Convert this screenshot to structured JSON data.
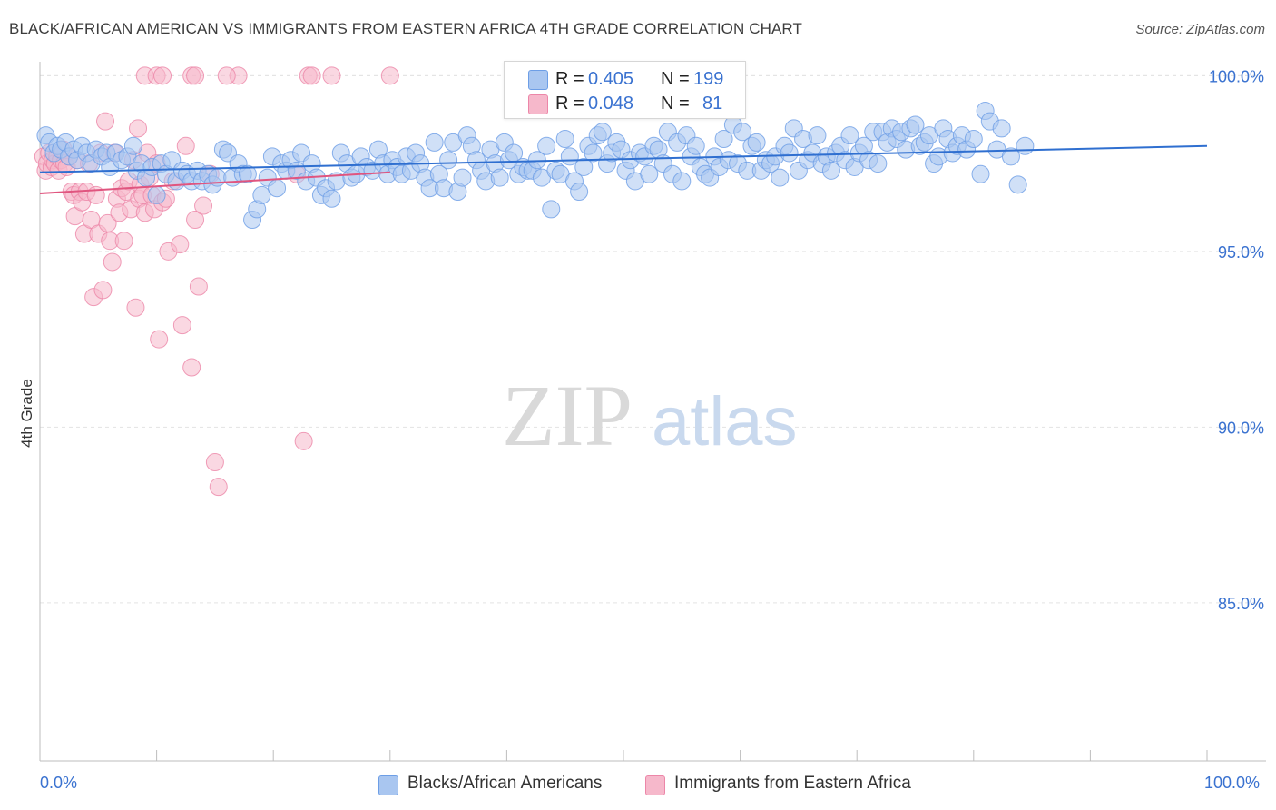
{
  "title": "BLACK/AFRICAN AMERICAN VS IMMIGRANTS FROM EASTERN AFRICA 4TH GRADE CORRELATION CHART",
  "source": "Source: ZipAtlas.com",
  "watermark": {
    "zip": "ZIP",
    "atlas": "atlas"
  },
  "legend_top": {
    "rows": [
      {
        "r_label": "R =",
        "r_value": "0.405",
        "n_label": "N =",
        "n_value": "199"
      },
      {
        "r_label": "R =",
        "r_value": "0.048",
        "n_label": "N =",
        "n_value": "81"
      }
    ]
  },
  "colors": {
    "blue_fill": "#a9c6f0",
    "blue_stroke": "#6d9ee6",
    "blue_line": "#2f6fd0",
    "pink_fill": "#f6b8cb",
    "pink_stroke": "#ec86a8",
    "pink_line": "#e0557f",
    "tick_label": "#3a72d0",
    "grid": "#e3e3e3"
  },
  "chart_data": {
    "type": "scatter",
    "title": "BLACK/AFRICAN AMERICAN VS IMMIGRANTS FROM EASTERN AFRICA 4TH GRADE CORRELATION CHART",
    "xlabel": "",
    "ylabel": "4th Grade",
    "xlim": [
      0,
      100
    ],
    "ylim": [
      80.5,
      100.5
    ],
    "x_tick_labels": [
      "0.0%",
      "100.0%"
    ],
    "y_ticks": [
      85,
      90,
      95,
      100
    ],
    "y_tick_labels": [
      "85.0%",
      "90.0%",
      "95.0%",
      "100.0%"
    ],
    "series": [
      {
        "name": "Blacks/African Americans",
        "color": "blue",
        "r": 0.405,
        "n": 199,
        "trend": {
          "x": [
            0,
            100
          ],
          "y": [
            97.25,
            98.0
          ]
        },
        "points": [
          [
            0.5,
            98.3
          ],
          [
            0.8,
            98.1
          ],
          [
            1.2,
            97.8
          ],
          [
            1.5,
            98.0
          ],
          [
            1.8,
            97.9
          ],
          [
            2.2,
            98.1
          ],
          [
            2.5,
            97.7
          ],
          [
            2.9,
            97.9
          ],
          [
            3.2,
            97.6
          ],
          [
            3.6,
            98.0
          ],
          [
            4.0,
            97.8
          ],
          [
            4.4,
            97.5
          ],
          [
            4.8,
            97.9
          ],
          [
            5.3,
            97.7
          ],
          [
            5.7,
            97.8
          ],
          [
            6.0,
            97.4
          ],
          [
            6.5,
            97.8
          ],
          [
            7.0,
            97.6
          ],
          [
            7.5,
            97.7
          ],
          [
            8.0,
            98.0
          ],
          [
            8.3,
            97.3
          ],
          [
            8.7,
            97.5
          ],
          [
            9.1,
            97.1
          ],
          [
            9.6,
            97.4
          ],
          [
            10.0,
            96.6
          ],
          [
            10.4,
            97.5
          ],
          [
            10.8,
            97.2
          ],
          [
            11.3,
            97.6
          ],
          [
            11.7,
            97.0
          ],
          [
            12.2,
            97.3
          ],
          [
            12.6,
            97.2
          ],
          [
            13.0,
            97.0
          ],
          [
            13.5,
            97.3
          ],
          [
            13.9,
            97.0
          ],
          [
            14.4,
            97.2
          ],
          [
            14.8,
            96.9
          ],
          [
            15.2,
            97.1
          ],
          [
            15.7,
            97.9
          ],
          [
            16.1,
            97.8
          ],
          [
            16.5,
            97.1
          ],
          [
            17.0,
            97.5
          ],
          [
            17.4,
            97.2
          ],
          [
            17.8,
            97.2
          ],
          [
            18.2,
            95.9
          ],
          [
            18.6,
            96.2
          ],
          [
            19.0,
            96.6
          ],
          [
            19.5,
            97.1
          ],
          [
            19.9,
            97.7
          ],
          [
            20.3,
            96.8
          ],
          [
            20.7,
            97.5
          ],
          [
            21.1,
            97.3
          ],
          [
            21.5,
            97.6
          ],
          [
            22.0,
            97.3
          ],
          [
            22.4,
            97.8
          ],
          [
            22.8,
            97.0
          ],
          [
            23.3,
            97.5
          ],
          [
            23.7,
            97.1
          ],
          [
            24.1,
            96.6
          ],
          [
            24.5,
            96.8
          ],
          [
            25.0,
            96.5
          ],
          [
            25.4,
            97.0
          ],
          [
            25.8,
            97.8
          ],
          [
            26.3,
            97.5
          ],
          [
            26.7,
            97.1
          ],
          [
            27.1,
            97.2
          ],
          [
            27.5,
            97.7
          ],
          [
            28.0,
            97.4
          ],
          [
            28.5,
            97.3
          ],
          [
            29.0,
            97.9
          ],
          [
            29.4,
            97.5
          ],
          [
            29.8,
            97.2
          ],
          [
            30.2,
            97.6
          ],
          [
            30.6,
            97.4
          ],
          [
            31.0,
            97.2
          ],
          [
            31.4,
            97.7
          ],
          [
            31.8,
            97.3
          ],
          [
            32.2,
            97.8
          ],
          [
            32.6,
            97.5
          ],
          [
            33.0,
            97.1
          ],
          [
            33.4,
            96.8
          ],
          [
            33.8,
            98.1
          ],
          [
            34.2,
            97.2
          ],
          [
            34.6,
            96.8
          ],
          [
            35.0,
            97.6
          ],
          [
            35.4,
            98.1
          ],
          [
            35.8,
            96.7
          ],
          [
            36.2,
            97.1
          ],
          [
            36.6,
            98.3
          ],
          [
            37.0,
            98.0
          ],
          [
            37.4,
            97.6
          ],
          [
            37.8,
            97.3
          ],
          [
            38.2,
            97.0
          ],
          [
            38.6,
            97.9
          ],
          [
            39.0,
            97.5
          ],
          [
            39.4,
            97.1
          ],
          [
            39.8,
            98.1
          ],
          [
            40.2,
            97.6
          ],
          [
            40.6,
            97.8
          ],
          [
            41.0,
            97.2
          ],
          [
            41.4,
            97.4
          ],
          [
            41.8,
            97.3
          ],
          [
            42.2,
            97.3
          ],
          [
            42.6,
            97.6
          ],
          [
            43.0,
            97.1
          ],
          [
            43.4,
            98.0
          ],
          [
            43.8,
            96.2
          ],
          [
            44.2,
            97.3
          ],
          [
            44.6,
            97.2
          ],
          [
            45.0,
            98.2
          ],
          [
            45.4,
            97.7
          ],
          [
            45.8,
            97.0
          ],
          [
            46.2,
            96.7
          ],
          [
            46.6,
            97.4
          ],
          [
            47.0,
            98.0
          ],
          [
            47.4,
            97.8
          ],
          [
            47.8,
            98.3
          ],
          [
            48.2,
            98.4
          ],
          [
            48.6,
            97.5
          ],
          [
            49.0,
            97.8
          ],
          [
            49.4,
            98.1
          ],
          [
            49.8,
            97.9
          ],
          [
            50.2,
            97.3
          ],
          [
            50.6,
            97.6
          ],
          [
            51.0,
            97.0
          ],
          [
            51.4,
            97.8
          ],
          [
            51.8,
            97.7
          ],
          [
            52.2,
            97.2
          ],
          [
            52.6,
            98.0
          ],
          [
            53.0,
            97.9
          ],
          [
            53.4,
            97.5
          ],
          [
            53.8,
            98.4
          ],
          [
            54.2,
            97.2
          ],
          [
            54.6,
            98.1
          ],
          [
            55.0,
            97.0
          ],
          [
            55.4,
            98.3
          ],
          [
            55.8,
            97.7
          ],
          [
            56.2,
            98.0
          ],
          [
            56.6,
            97.4
          ],
          [
            57.0,
            97.2
          ],
          [
            57.4,
            97.1
          ],
          [
            57.8,
            97.7
          ],
          [
            58.2,
            97.4
          ],
          [
            58.6,
            98.2
          ],
          [
            59.0,
            97.6
          ],
          [
            59.4,
            98.6
          ],
          [
            59.8,
            97.5
          ],
          [
            60.2,
            98.4
          ],
          [
            60.6,
            97.3
          ],
          [
            61.0,
            98.0
          ],
          [
            61.4,
            98.1
          ],
          [
            61.8,
            97.3
          ],
          [
            62.2,
            97.6
          ],
          [
            62.6,
            97.5
          ],
          [
            63.0,
            97.7
          ],
          [
            63.4,
            97.1
          ],
          [
            63.8,
            98.0
          ],
          [
            64.2,
            97.8
          ],
          [
            64.6,
            98.5
          ],
          [
            65.0,
            97.3
          ],
          [
            65.4,
            98.2
          ],
          [
            65.8,
            97.6
          ],
          [
            66.2,
            97.8
          ],
          [
            66.6,
            98.3
          ],
          [
            67.0,
            97.5
          ],
          [
            67.4,
            97.7
          ],
          [
            67.8,
            97.3
          ],
          [
            68.2,
            97.8
          ],
          [
            68.6,
            98.0
          ],
          [
            69.0,
            97.6
          ],
          [
            69.4,
            98.3
          ],
          [
            69.8,
            97.4
          ],
          [
            70.2,
            97.8
          ],
          [
            70.6,
            98.0
          ],
          [
            71.0,
            97.6
          ],
          [
            71.4,
            98.4
          ],
          [
            71.8,
            97.5
          ],
          [
            72.2,
            98.4
          ],
          [
            72.6,
            98.1
          ],
          [
            73.0,
            98.5
          ],
          [
            73.4,
            98.2
          ],
          [
            73.8,
            98.4
          ],
          [
            74.2,
            97.9
          ],
          [
            74.6,
            98.5
          ],
          [
            75.0,
            98.6
          ],
          [
            75.4,
            98.0
          ],
          [
            75.8,
            98.1
          ],
          [
            76.2,
            98.3
          ],
          [
            76.6,
            97.5
          ],
          [
            77.0,
            97.7
          ],
          [
            77.4,
            98.5
          ],
          [
            77.8,
            98.2
          ],
          [
            78.2,
            97.8
          ],
          [
            78.6,
            98.0
          ],
          [
            79.0,
            98.3
          ],
          [
            79.4,
            97.9
          ],
          [
            80.0,
            98.2
          ],
          [
            80.6,
            97.2
          ],
          [
            81.0,
            99.0
          ],
          [
            81.4,
            98.7
          ],
          [
            82.0,
            97.9
          ],
          [
            82.4,
            98.5
          ],
          [
            83.2,
            97.7
          ],
          [
            83.8,
            96.9
          ],
          [
            84.4,
            98.0
          ]
        ]
      },
      {
        "name": "Immigrants from Eastern Africa",
        "color": "pink",
        "r": 0.048,
        "n": 81,
        "trend": {
          "x": [
            0,
            30
          ],
          "y": [
            96.65,
            97.25
          ]
        },
        "points": [
          [
            0.3,
            97.7
          ],
          [
            0.5,
            97.3
          ],
          [
            0.6,
            97.5
          ],
          [
            0.8,
            97.8
          ],
          [
            1.0,
            97.4
          ],
          [
            1.1,
            97.6
          ],
          [
            1.3,
            97.5
          ],
          [
            1.5,
            97.7
          ],
          [
            1.6,
            97.3
          ],
          [
            1.8,
            97.6
          ],
          [
            2.0,
            97.9
          ],
          [
            2.1,
            97.5
          ],
          [
            2.3,
            97.4
          ],
          [
            2.5,
            97.7
          ],
          [
            2.7,
            96.7
          ],
          [
            2.9,
            96.6
          ],
          [
            3.0,
            96.0
          ],
          [
            3.2,
            97.6
          ],
          [
            3.4,
            96.7
          ],
          [
            3.6,
            96.4
          ],
          [
            3.8,
            95.5
          ],
          [
            4.0,
            96.7
          ],
          [
            4.2,
            97.5
          ],
          [
            4.4,
            95.9
          ],
          [
            4.6,
            93.7
          ],
          [
            4.8,
            96.6
          ],
          [
            5.0,
            95.5
          ],
          [
            5.2,
            97.8
          ],
          [
            5.4,
            93.9
          ],
          [
            5.6,
            98.7
          ],
          [
            5.8,
            95.8
          ],
          [
            6.0,
            95.3
          ],
          [
            6.2,
            94.7
          ],
          [
            6.4,
            97.8
          ],
          [
            6.6,
            96.5
          ],
          [
            6.8,
            96.1
          ],
          [
            7.0,
            96.8
          ],
          [
            7.2,
            95.3
          ],
          [
            7.4,
            96.7
          ],
          [
            7.6,
            97.0
          ],
          [
            7.8,
            96.2
          ],
          [
            8.0,
            97.6
          ],
          [
            8.2,
            93.4
          ],
          [
            8.4,
            98.5
          ],
          [
            8.5,
            96.5
          ],
          [
            8.6,
            96.9
          ],
          [
            8.8,
            96.6
          ],
          [
            9.0,
            96.1
          ],
          [
            9.2,
            97.8
          ],
          [
            9.4,
            97.1
          ],
          [
            9.6,
            96.6
          ],
          [
            9.8,
            96.2
          ],
          [
            10.0,
            97.5
          ],
          [
            10.2,
            92.5
          ],
          [
            10.5,
            96.4
          ],
          [
            10.8,
            96.5
          ],
          [
            11.0,
            95.0
          ],
          [
            11.4,
            97.0
          ],
          [
            12.0,
            95.2
          ],
          [
            12.2,
            92.9
          ],
          [
            12.5,
            98.0
          ],
          [
            13.0,
            91.7
          ],
          [
            13.3,
            95.9
          ],
          [
            13.6,
            94.0
          ],
          [
            14.0,
            96.3
          ],
          [
            14.6,
            97.2
          ],
          [
            15.0,
            89.0
          ],
          [
            15.3,
            88.3
          ],
          [
            17.0,
            100.0
          ],
          [
            22.0,
            97.2
          ],
          [
            22.6,
            89.6
          ],
          [
            9.0,
            100.0
          ],
          [
            10.0,
            100.0
          ],
          [
            10.5,
            100.0
          ],
          [
            13.0,
            100.0
          ],
          [
            13.3,
            100.0
          ],
          [
            16.0,
            100.0
          ],
          [
            23.0,
            100.0
          ],
          [
            23.3,
            100.0
          ],
          [
            25.0,
            100.0
          ],
          [
            30.0,
            100.0
          ]
        ]
      }
    ]
  },
  "bottom_legend": [
    "Blacks/African Americans",
    "Immigrants from Eastern Africa"
  ]
}
